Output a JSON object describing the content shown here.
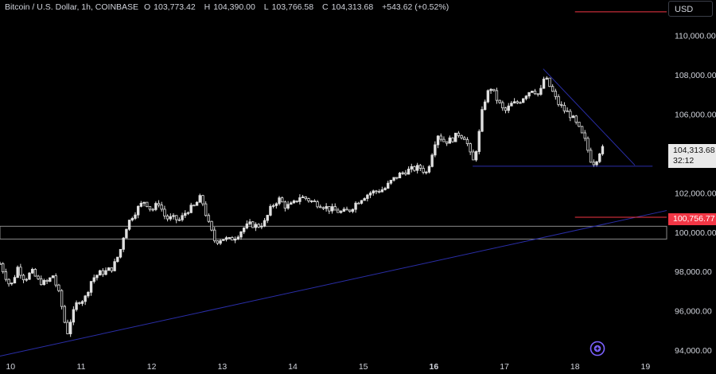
{
  "header": {
    "symbol": "Bitcoin / U.S. Dollar, 1h, COINBASE",
    "open_label": "O",
    "open": "103,773.42",
    "high_label": "H",
    "high": "104,390.00",
    "low_label": "L",
    "low": "103,766.58",
    "close_label": "C",
    "close": "104,313.68",
    "change": "+543.62 (+0.52%)"
  },
  "currency": "USD",
  "price_badge": {
    "price": "104,313.68",
    "countdown": "32:12"
  },
  "alert_badge": {
    "price": "100,756.77"
  },
  "logo_icon": "tradingview-logo-icon",
  "colors": {
    "background": "#000000",
    "candle": "#e0e0e0",
    "trendline": "#2a2ea8",
    "alert": "#f23645",
    "zone": "#8a8a8a"
  },
  "chart_data": {
    "type": "candlestick",
    "interval": "1h",
    "ylim": [
      93600,
      111800
    ],
    "y_ticks": [
      94000,
      96000,
      98000,
      100000,
      102000,
      104000,
      106000,
      108000,
      110000
    ],
    "y_tick_labels": [
      "94,000.00",
      "96,000.00",
      "98,000.00",
      "100,000.00",
      "102,000.00",
      "",
      "106,000.00",
      "108,000.00",
      "110,000.00"
    ],
    "x_labels": [
      "10",
      "11",
      "12",
      "13",
      "14",
      "15",
      "16",
      "17",
      "18",
      "19"
    ],
    "x_label_days": [
      10,
      11,
      12,
      13,
      14,
      15,
      16,
      17,
      18,
      19
    ],
    "x_bold": [
      "16"
    ],
    "xlim_days": [
      9.85,
      19.3
    ],
    "close_path": [
      [
        9.85,
        98400
      ],
      [
        9.95,
        97600
      ],
      [
        10.0,
        97200
      ],
      [
        10.1,
        98200
      ],
      [
        10.2,
        97600
      ],
      [
        10.3,
        98000
      ],
      [
        10.4,
        97500
      ],
      [
        10.5,
        97400
      ],
      [
        10.6,
        97800
      ],
      [
        10.7,
        96700
      ],
      [
        10.8,
        94800
      ],
      [
        10.85,
        95500
      ],
      [
        10.95,
        96500
      ],
      [
        11.05,
        96600
      ],
      [
        11.15,
        97600
      ],
      [
        11.25,
        97900
      ],
      [
        11.35,
        98000
      ],
      [
        11.45,
        98200
      ],
      [
        11.55,
        99000
      ],
      [
        11.62,
        100100
      ],
      [
        11.7,
        100700
      ],
      [
        11.8,
        101200
      ],
      [
        11.9,
        101600
      ],
      [
        12.0,
        101100
      ],
      [
        12.1,
        101500
      ],
      [
        12.2,
        100700
      ],
      [
        12.3,
        100700
      ],
      [
        12.4,
        100600
      ],
      [
        12.5,
        101100
      ],
      [
        12.6,
        101300
      ],
      [
        12.7,
        101800
      ],
      [
        12.8,
        100500
      ],
      [
        12.9,
        99500
      ],
      [
        13.0,
        99700
      ],
      [
        13.1,
        99600
      ],
      [
        13.2,
        99800
      ],
      [
        13.3,
        100200
      ],
      [
        13.4,
        100400
      ],
      [
        13.5,
        100300
      ],
      [
        13.6,
        100500
      ],
      [
        13.7,
        101300
      ],
      [
        13.8,
        101700
      ],
      [
        13.9,
        101300
      ],
      [
        14.0,
        101400
      ],
      [
        14.1,
        101800
      ],
      [
        14.2,
        101700
      ],
      [
        14.3,
        101500
      ],
      [
        14.4,
        101400
      ],
      [
        14.5,
        101200
      ],
      [
        14.6,
        101100
      ],
      [
        14.7,
        101000
      ],
      [
        14.8,
        101100
      ],
      [
        14.9,
        101500
      ],
      [
        15.0,
        101800
      ],
      [
        15.1,
        102000
      ],
      [
        15.2,
        102100
      ],
      [
        15.3,
        102200
      ],
      [
        15.4,
        102600
      ],
      [
        15.5,
        102900
      ],
      [
        15.6,
        103100
      ],
      [
        15.7,
        103200
      ],
      [
        15.8,
        103300
      ],
      [
        15.9,
        103000
      ],
      [
        16.0,
        104400
      ],
      [
        16.05,
        105000
      ],
      [
        16.15,
        104600
      ],
      [
        16.25,
        104700
      ],
      [
        16.35,
        105000
      ],
      [
        16.45,
        104800
      ],
      [
        16.55,
        103500
      ],
      [
        16.62,
        104500
      ],
      [
        16.7,
        106500
      ],
      [
        16.8,
        107400
      ],
      [
        16.9,
        106700
      ],
      [
        17.0,
        106100
      ],
      [
        17.1,
        106500
      ],
      [
        17.2,
        106600
      ],
      [
        17.3,
        107000
      ],
      [
        17.4,
        107300
      ],
      [
        17.5,
        106900
      ],
      [
        17.55,
        107800
      ],
      [
        17.6,
        107700
      ],
      [
        17.7,
        107000
      ],
      [
        17.75,
        106600
      ],
      [
        17.85,
        106200
      ],
      [
        17.95,
        105900
      ],
      [
        18.05,
        105300
      ],
      [
        18.15,
        104600
      ],
      [
        18.22,
        103700
      ],
      [
        18.28,
        103500
      ],
      [
        18.35,
        104100
      ],
      [
        18.42,
        104313.68
      ]
    ],
    "lines": [
      {
        "name": "support-trendline",
        "from": [
          9.85,
          93700
        ],
        "to": [
          19.3,
          101100
        ]
      },
      {
        "name": "descending-trendline",
        "from": [
          17.55,
          108300
        ],
        "to": [
          18.85,
          103400
        ]
      },
      {
        "name": "horizontal-support-line",
        "from": [
          16.55,
          103350
        ],
        "to": [
          19.1,
          103350
        ]
      },
      {
        "name": "alert-level-line",
        "from": [
          18.0,
          100756.77
        ],
        "to": [
          19.3,
          100756.77
        ],
        "color": "alert"
      },
      {
        "name": "top-alert-line",
        "from": [
          18.0,
          111200
        ],
        "to": [
          19.3,
          111200
        ],
        "color": "alert"
      }
    ],
    "zone": {
      "name": "support-zone",
      "y_from": 99650,
      "y_to": 100300
    }
  }
}
